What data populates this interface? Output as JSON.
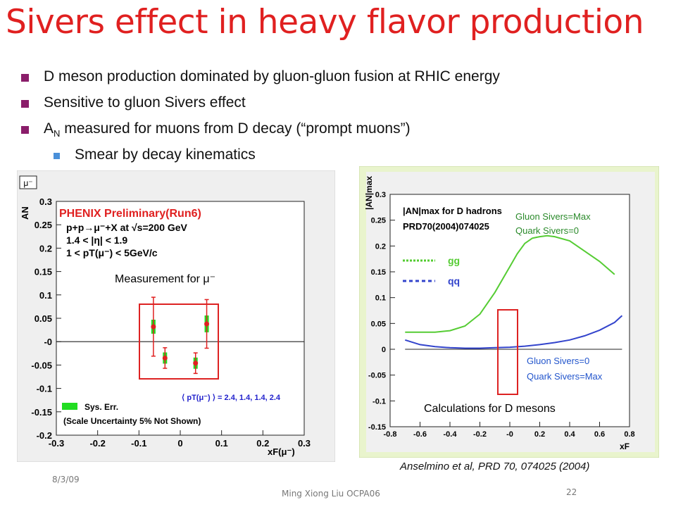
{
  "slide": {
    "title": "Sivers effect in heavy flavor production",
    "bullets": [
      {
        "text": "D meson production dominated by gluon-gluon fusion at RHIC energy"
      },
      {
        "text": "Sensitive to gluon Sivers effect"
      },
      {
        "prefix": "A",
        "sub": "N",
        "text": " measured for muons from D decay (“prompt muons”)"
      },
      {
        "text": "Smear by decay kinematics"
      }
    ],
    "footer": {
      "date": "8/3/09",
      "author": "Ming Xiong Liu  OCPA06",
      "page": "22"
    },
    "reference": "Anselmino et al, PRD 70, 074025 (2004)"
  },
  "colors": {
    "title": "#e02020",
    "bullet": "#8a1d6a",
    "sub_bullet": "#4a90d9",
    "phenix_red": "#e02020",
    "gg_green": "#55cc33",
    "qq_blue": "#3344cc"
  },
  "chart_data": [
    {
      "type": "scatter",
      "badge": "μ⁻",
      "title": "PHENIX Preliminary(Run6)",
      "info_lines": [
        "p+p→μ⁻+X at √s=200 GeV",
        "1.4 < |η| < 1.9",
        "1 < pT(μ⁻) < 5GeV/c"
      ],
      "annotation": "Measurement for μ⁻",
      "pt_note": "⟨ pT(μ⁻) ⟩ = 2.4, 1.4, 1.4, 2.4",
      "legend": [
        "Sys. Err.",
        "(Scale Uncertainty 5% Not Shown)"
      ],
      "ylabel": "AN",
      "xlabel": "xF(μ⁻)",
      "xlim": [
        -0.3,
        0.3
      ],
      "ylim": [
        -0.2,
        0.3
      ],
      "xticks": [
        "-0.3",
        "-0.2",
        "-0.1",
        "0",
        "0.1",
        "0.2",
        "0.3"
      ],
      "yticks": [
        "0.3",
        "0.25",
        "0.2",
        "0.15",
        "0.1",
        "0.05",
        "-0",
        "-0.05",
        "-0.1",
        "-0.15",
        "-0.2"
      ],
      "points": [
        {
          "x": -0.065,
          "y": 0.032,
          "err": 0.063,
          "sys": 0.015
        },
        {
          "x": -0.037,
          "y": -0.035,
          "err": 0.022,
          "sys": 0.012
        },
        {
          "x": 0.037,
          "y": -0.046,
          "err": 0.022,
          "sys": 0.012
        },
        {
          "x": 0.064,
          "y": 0.038,
          "err": 0.052,
          "sys": 0.018
        }
      ]
    },
    {
      "type": "line",
      "title": "|AN|max for D hadrons",
      "subtitle": "PRD70(2004)074025",
      "ylabel": "|AN|max",
      "xlabel": "xF",
      "xlim": [
        -0.8,
        0.8
      ],
      "ylim": [
        -0.15,
        0.3
      ],
      "xticks": [
        "-0.8",
        "-0.6",
        "-0.4",
        "-0.2",
        "-0",
        "0.2",
        "0.4",
        "0.6",
        "0.8"
      ],
      "yticks": [
        "0.3",
        "0.25",
        "0.2",
        "0.15",
        "0.1",
        "0.05",
        "0",
        "-0.05",
        "-0.1",
        "-0.15"
      ],
      "annotation_top": [
        "Gluon Sivers=Max",
        "Quark Sivers=0"
      ],
      "annotation_bottom": [
        "Gluon Sivers=0",
        "Quark Sivers=Max"
      ],
      "caption": "Calculations for D mesons",
      "series": [
        {
          "name": "gg",
          "x": [
            -0.7,
            -0.5,
            -0.4,
            -0.3,
            -0.2,
            -0.1,
            0.0,
            0.05,
            0.1,
            0.15,
            0.2,
            0.25,
            0.3,
            0.4,
            0.5,
            0.6,
            0.7
          ],
          "y": [
            0.033,
            0.033,
            0.036,
            0.045,
            0.068,
            0.11,
            0.16,
            0.185,
            0.205,
            0.215,
            0.218,
            0.22,
            0.218,
            0.21,
            0.19,
            0.17,
            0.145
          ]
        },
        {
          "name": "qq",
          "x": [
            -0.7,
            -0.6,
            -0.5,
            -0.4,
            -0.3,
            -0.2,
            -0.1,
            0.0,
            0.1,
            0.2,
            0.3,
            0.4,
            0.5,
            0.6,
            0.7,
            0.75
          ],
          "y": [
            0.018,
            0.009,
            0.005,
            0.003,
            0.002,
            0.002,
            0.003,
            0.004,
            0.006,
            0.009,
            0.013,
            0.018,
            0.026,
            0.037,
            0.052,
            0.065
          ]
        }
      ]
    }
  ]
}
